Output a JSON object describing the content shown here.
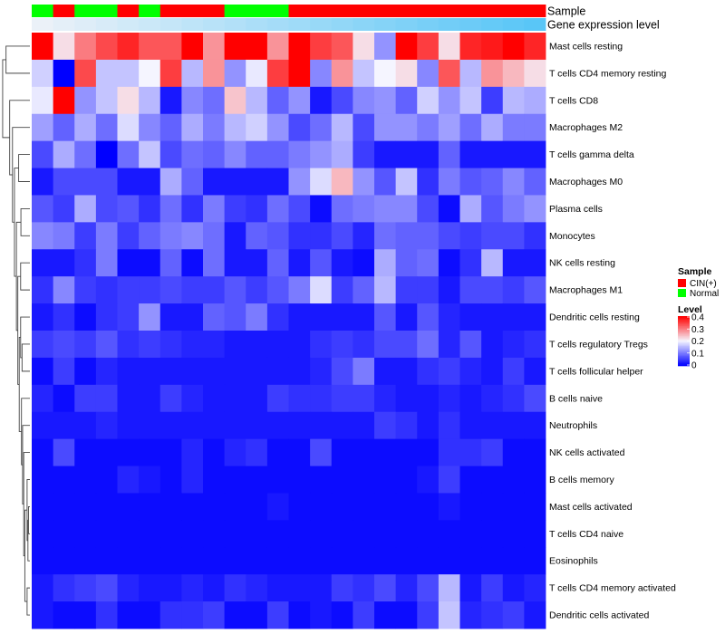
{
  "chart_data": {
    "type": "heatmap",
    "annotation_rows": [
      {
        "name": "Sample",
        "label": "Sample"
      },
      {
        "name": "Gene expression level",
        "label": "Gene expression level"
      }
    ],
    "sample_groups": [
      "Normal",
      "CIN(+)",
      "Normal",
      "Normal",
      "CIN(+)",
      "Normal",
      "CIN(+)",
      "CIN(+)",
      "CIN(+)",
      "Normal",
      "Normal",
      "Normal",
      "CIN(+)",
      "CIN(+)",
      "CIN(+)",
      "CIN(+)",
      "CIN(+)",
      "CIN(+)",
      "CIN(+)",
      "CIN(+)",
      "CIN(+)",
      "CIN(+)",
      "CIN(+)",
      "CIN(+)"
    ],
    "gene_expression_level": [
      0.02,
      0.06,
      0.1,
      0.14,
      0.18,
      0.22,
      0.26,
      0.3,
      0.34,
      0.38,
      0.42,
      0.46,
      0.5,
      0.54,
      0.58,
      0.62,
      0.66,
      0.7,
      0.74,
      0.78,
      0.82,
      0.86,
      0.9,
      0.94
    ],
    "rows": [
      "Mast cells resting",
      "T cells CD4 memory resting",
      "T cells CD8",
      "Macrophages M2",
      "T cells gamma delta",
      "Macrophages M0",
      "Plasma cells",
      "Monocytes",
      "NK cells resting",
      "Macrophages M1",
      "Dendritic cells resting",
      "T cells regulatory  Tregs",
      "T cells follicular helper",
      "B cells naive",
      "Neutrophils",
      "NK cells activated",
      "B cells memory",
      "Mast cells activated",
      "T cells CD4 naive",
      "Eosinophils",
      "T cells CD4 memory activated",
      "Dendritic cells activated"
    ],
    "values": [
      [
        0.4,
        0.22,
        0.3,
        0.34,
        0.37,
        0.33,
        0.33,
        0.4,
        0.28,
        0.4,
        0.4,
        0.28,
        0.4,
        0.35,
        0.33,
        0.22,
        0.12,
        0.4,
        0.35,
        0.22,
        0.37,
        0.38,
        0.4,
        0.37
      ],
      [
        0.17,
        0.0,
        0.34,
        0.16,
        0.16,
        0.2,
        0.35,
        0.15,
        0.28,
        0.12,
        0.19,
        0.35,
        0.4,
        0.11,
        0.28,
        0.16,
        0.2,
        0.22,
        0.11,
        0.33,
        0.15,
        0.28,
        0.25,
        0.22
      ],
      [
        0.19,
        0.4,
        0.12,
        0.16,
        0.22,
        0.15,
        0.02,
        0.11,
        0.09,
        0.24,
        0.15,
        0.08,
        0.12,
        0.02,
        0.06,
        0.11,
        0.12,
        0.08,
        0.17,
        0.12,
        0.16,
        0.05,
        0.15,
        0.14
      ],
      [
        0.13,
        0.08,
        0.14,
        0.09,
        0.18,
        0.11,
        0.08,
        0.14,
        0.1,
        0.15,
        0.17,
        0.12,
        0.06,
        0.09,
        0.15,
        0.06,
        0.12,
        0.12,
        0.1,
        0.13,
        0.09,
        0.14,
        0.1,
        0.1
      ],
      [
        0.06,
        0.14,
        0.09,
        0.0,
        0.09,
        0.16,
        0.06,
        0.09,
        0.08,
        0.11,
        0.08,
        0.08,
        0.1,
        0.12,
        0.14,
        0.05,
        0.02,
        0.02,
        0.02,
        0.08,
        0.02,
        0.02,
        0.02,
        0.02
      ],
      [
        0.02,
        0.06,
        0.06,
        0.06,
        0.02,
        0.02,
        0.14,
        0.08,
        0.02,
        0.02,
        0.02,
        0.02,
        0.12,
        0.18,
        0.25,
        0.12,
        0.07,
        0.16,
        0.04,
        0.1,
        0.07,
        0.08,
        0.11,
        0.08
      ],
      [
        0.07,
        0.05,
        0.14,
        0.06,
        0.07,
        0.04,
        0.09,
        0.04,
        0.1,
        0.05,
        0.04,
        0.09,
        0.06,
        0.01,
        0.09,
        0.1,
        0.11,
        0.11,
        0.06,
        0.01,
        0.14,
        0.07,
        0.1,
        0.12
      ],
      [
        0.11,
        0.1,
        0.05,
        0.1,
        0.05,
        0.08,
        0.1,
        0.11,
        0.09,
        0.02,
        0.08,
        0.07,
        0.04,
        0.04,
        0.06,
        0.03,
        0.09,
        0.08,
        0.08,
        0.06,
        0.05,
        0.06,
        0.06,
        0.04
      ],
      [
        0.02,
        0.02,
        0.04,
        0.1,
        0.01,
        0.01,
        0.08,
        0.01,
        0.09,
        0.02,
        0.02,
        0.08,
        0.02,
        0.07,
        0.02,
        0.01,
        0.14,
        0.08,
        0.09,
        0.01,
        0.04,
        0.15,
        0.02,
        0.02
      ],
      [
        0.04,
        0.11,
        0.05,
        0.04,
        0.05,
        0.05,
        0.06,
        0.05,
        0.05,
        0.07,
        0.05,
        0.07,
        0.1,
        0.18,
        0.05,
        0.08,
        0.15,
        0.05,
        0.05,
        0.02,
        0.06,
        0.06,
        0.05,
        0.07
      ],
      [
        0.02,
        0.04,
        0.01,
        0.04,
        0.05,
        0.12,
        0.02,
        0.02,
        0.08,
        0.07,
        0.1,
        0.04,
        0.02,
        0.02,
        0.02,
        0.02,
        0.07,
        0.02,
        0.07,
        0.03,
        0.02,
        0.02,
        0.02,
        0.02
      ],
      [
        0.05,
        0.06,
        0.05,
        0.07,
        0.04,
        0.05,
        0.04,
        0.03,
        0.03,
        0.02,
        0.02,
        0.02,
        0.02,
        0.04,
        0.05,
        0.04,
        0.06,
        0.06,
        0.09,
        0.03,
        0.07,
        0.02,
        0.03,
        0.04
      ],
      [
        0.01,
        0.05,
        0.01,
        0.03,
        0.02,
        0.02,
        0.02,
        0.02,
        0.02,
        0.02,
        0.02,
        0.02,
        0.02,
        0.03,
        0.06,
        0.1,
        0.02,
        0.02,
        0.04,
        0.05,
        0.03,
        0.02,
        0.05,
        0.02
      ],
      [
        0.03,
        0.01,
        0.05,
        0.05,
        0.02,
        0.02,
        0.05,
        0.03,
        0.02,
        0.02,
        0.02,
        0.05,
        0.04,
        0.04,
        0.05,
        0.05,
        0.03,
        0.02,
        0.02,
        0.03,
        0.02,
        0.03,
        0.04,
        0.06
      ],
      [
        0.02,
        0.02,
        0.02,
        0.03,
        0.02,
        0.02,
        0.02,
        0.02,
        0.02,
        0.02,
        0.02,
        0.02,
        0.02,
        0.02,
        0.02,
        0.02,
        0.05,
        0.04,
        0.02,
        0.04,
        0.02,
        0.02,
        0.02,
        0.02
      ],
      [
        0.01,
        0.06,
        0.01,
        0.01,
        0.01,
        0.01,
        0.01,
        0.03,
        0.01,
        0.03,
        0.04,
        0.01,
        0.01,
        0.06,
        0.01,
        0.01,
        0.01,
        0.01,
        0.01,
        0.04,
        0.04,
        0.05,
        0.01,
        0.01
      ],
      [
        0.01,
        0.01,
        0.01,
        0.01,
        0.03,
        0.02,
        0.01,
        0.03,
        0.01,
        0.01,
        0.01,
        0.01,
        0.01,
        0.01,
        0.01,
        0.01,
        0.01,
        0.01,
        0.02,
        0.05,
        0.01,
        0.01,
        0.01,
        0.01
      ],
      [
        0.01,
        0.01,
        0.01,
        0.01,
        0.01,
        0.01,
        0.01,
        0.01,
        0.01,
        0.01,
        0.01,
        0.02,
        0.01,
        0.01,
        0.01,
        0.01,
        0.01,
        0.01,
        0.01,
        0.02,
        0.01,
        0.01,
        0.01,
        0.01
      ],
      [
        0.01,
        0.01,
        0.01,
        0.01,
        0.01,
        0.01,
        0.01,
        0.01,
        0.01,
        0.01,
        0.01,
        0.01,
        0.01,
        0.01,
        0.01,
        0.01,
        0.01,
        0.01,
        0.01,
        0.01,
        0.01,
        0.01,
        0.01,
        0.01
      ],
      [
        0.01,
        0.01,
        0.01,
        0.01,
        0.01,
        0.01,
        0.01,
        0.01,
        0.01,
        0.01,
        0.01,
        0.01,
        0.01,
        0.01,
        0.01,
        0.01,
        0.01,
        0.01,
        0.01,
        0.01,
        0.01,
        0.01,
        0.01,
        0.01
      ],
      [
        0.02,
        0.04,
        0.05,
        0.06,
        0.03,
        0.02,
        0.02,
        0.03,
        0.02,
        0.04,
        0.03,
        0.02,
        0.02,
        0.02,
        0.05,
        0.04,
        0.06,
        0.03,
        0.06,
        0.15,
        0.02,
        0.05,
        0.02,
        0.03
      ],
      [
        0.02,
        0.01,
        0.01,
        0.04,
        0.01,
        0.01,
        0.04,
        0.04,
        0.05,
        0.01,
        0.01,
        0.05,
        0.01,
        0.02,
        0.01,
        0.05,
        0.01,
        0.01,
        0.05,
        0.16,
        0.03,
        0.04,
        0.05,
        0.02
      ]
    ],
    "color_scale": {
      "min": 0,
      "max": 0.4,
      "low_color": "#0000ff",
      "mid_color": "#f5f5ff",
      "high_color": "#ff0000",
      "mid_value": 0.2
    },
    "legends": [
      {
        "name": "Sample",
        "title": "Sample",
        "entries": [
          {
            "label": "CIN(+)",
            "color": "#ff0000"
          },
          {
            "label": "Normal",
            "color": "#00ff00"
          }
        ]
      },
      {
        "name": "Level",
        "title": "Level",
        "ticks": [
          "0.4",
          "0.3",
          "0.2",
          "0.1",
          "0"
        ]
      }
    ],
    "dendrogram": "row clustering tree shown on the left",
    "legend_position": "right"
  }
}
